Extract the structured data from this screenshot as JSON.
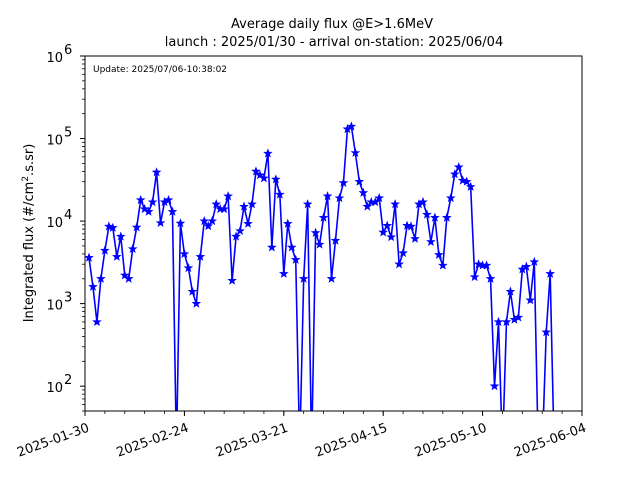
{
  "chart_data": {
    "type": "line",
    "title": "Average daily flux @E>1.6MeV",
    "subtitle": "launch : 2025/01/30 - arrival on-station: 2025/06/04",
    "annotation": "Update: 2025/07/06-10:38:02",
    "xlabel": "",
    "ylabel": "Integrated flux (#/cm",
    "ylabel_sup": "2",
    "ylabel_tail": ".s.sr)",
    "yscale": "log",
    "ylim": [
      50,
      1000000
    ],
    "xlim": [
      "2025-01-30",
      "2025-06-04"
    ],
    "grid": false,
    "color": "#0000ff",
    "marker": "star",
    "xticks": [
      "2025-01-30",
      "2025-02-24",
      "2025-03-21",
      "2025-04-15",
      "2025-05-10",
      "2025-06-04"
    ],
    "yticks": [
      {
        "value": 100,
        "base": "10",
        "exp": "2"
      },
      {
        "value": 1000,
        "base": "10",
        "exp": "3"
      },
      {
        "value": 10000,
        "base": "10",
        "exp": "4"
      },
      {
        "value": 100000,
        "base": "10",
        "exp": "5"
      },
      {
        "value": 1000000,
        "base": "10",
        "exp": "6"
      }
    ],
    "series": [
      {
        "x": [
          "2025-01-31",
          "2025-02-01",
          "2025-02-02",
          "2025-02-03",
          "2025-02-04",
          "2025-02-05",
          "2025-02-06",
          "2025-02-07",
          "2025-02-08",
          "2025-02-09",
          "2025-02-10",
          "2025-02-11",
          "2025-02-12",
          "2025-02-13",
          "2025-02-14",
          "2025-02-15",
          "2025-02-16",
          "2025-02-17",
          "2025-02-18",
          "2025-02-19",
          "2025-02-20",
          "2025-02-21",
          "2025-02-22",
          "2025-02-23",
          "2025-02-24",
          "2025-02-25",
          "2025-02-26",
          "2025-02-27",
          "2025-02-28",
          "2025-03-01",
          "2025-03-02",
          "2025-03-03",
          "2025-03-04",
          "2025-03-05",
          "2025-03-06",
          "2025-03-07",
          "2025-03-08",
          "2025-03-09",
          "2025-03-10",
          "2025-03-11",
          "2025-03-12",
          "2025-03-13",
          "2025-03-14",
          "2025-03-15",
          "2025-03-16",
          "2025-03-17",
          "2025-03-18",
          "2025-03-19",
          "2025-03-20",
          "2025-03-21",
          "2025-03-22",
          "2025-03-23",
          "2025-03-24",
          "2025-03-25",
          "2025-03-26",
          "2025-03-27",
          "2025-03-28",
          "2025-03-29",
          "2025-03-30",
          "2025-03-31",
          "2025-04-01",
          "2025-04-02",
          "2025-04-03",
          "2025-04-04",
          "2025-04-05",
          "2025-04-06",
          "2025-04-07",
          "2025-04-08",
          "2025-04-09",
          "2025-04-10",
          "2025-04-11",
          "2025-04-12",
          "2025-04-13",
          "2025-04-14",
          "2025-04-15",
          "2025-04-16",
          "2025-04-17",
          "2025-04-18",
          "2025-04-19",
          "2025-04-20",
          "2025-04-21",
          "2025-04-22",
          "2025-04-23",
          "2025-04-24",
          "2025-04-25",
          "2025-04-26",
          "2025-04-27",
          "2025-04-28",
          "2025-04-29",
          "2025-04-30",
          "2025-05-01",
          "2025-05-02",
          "2025-05-03",
          "2025-05-04",
          "2025-05-05",
          "2025-05-06",
          "2025-05-07",
          "2025-05-08",
          "2025-05-09",
          "2025-05-10",
          "2025-05-11",
          "2025-05-12",
          "2025-05-13",
          "2025-05-14",
          "2025-05-15",
          "2025-05-16",
          "2025-05-17",
          "2025-05-18",
          "2025-05-19",
          "2025-05-20",
          "2025-05-21",
          "2025-05-22",
          "2025-05-23",
          "2025-05-24",
          "2025-05-25",
          "2025-05-26",
          "2025-05-27",
          "2025-05-28"
        ],
        "y": [
          3600,
          1600,
          600,
          2000,
          4400,
          8600,
          8300,
          3700,
          6500,
          2200,
          2000,
          4600,
          8400,
          18000,
          14000,
          13000,
          17000,
          39000,
          9500,
          17000,
          18000,
          13000,
          0,
          9400,
          4000,
          2700,
          1400,
          1000,
          3700,
          10000,
          8700,
          10000,
          16000,
          14000,
          14000,
          20000,
          1900,
          6500,
          7600,
          15000,
          9300,
          16000,
          40000,
          36000,
          33000,
          66000,
          4800,
          32000,
          21000,
          2300,
          9300,
          4800,
          3400,
          0,
          2000,
          16000,
          0,
          7200,
          5200,
          11000,
          20000,
          2000,
          5800,
          19000,
          29000,
          130000,
          140000,
          67000,
          30000,
          22000,
          15000,
          17000,
          17000,
          19000,
          7300,
          8800,
          6400,
          16000,
          3000,
          4100,
          8800,
          8600,
          6100,
          16000,
          17000,
          12000,
          5600,
          11000,
          3900,
          2900,
          11000,
          19000,
          37000,
          45000,
          31000,
          30000,
          26000,
          2100,
          3000,
          2900,
          2900,
          2000,
          100,
          600,
          0,
          600,
          1400,
          640,
          680,
          2600,
          2800,
          1100,
          3200,
          0,
          0,
          450,
          2300,
          0
        ]
      }
    ]
  }
}
